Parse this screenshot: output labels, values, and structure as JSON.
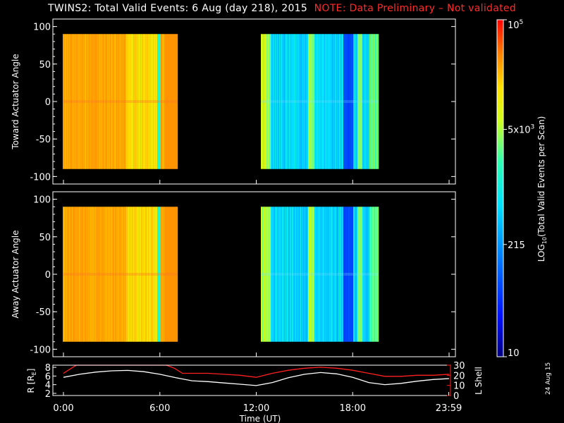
{
  "header": {
    "title_main": "TWINS2: Total Valid Events:  6 Aug (day 218), 2015",
    "title_note": "NOTE: Data Preliminary – Not validated",
    "stamp": "24 Aug 15"
  },
  "colors": {
    "background": "#000000",
    "axes": "#ffffff",
    "note": "#ff2a2a",
    "r_line": "#ffffff",
    "l_shell_line": "#ff2020"
  },
  "chart_data": [
    {
      "type": "heatmap",
      "name": "toward",
      "ylabel": "Toward Actuator Angle",
      "ylim": [
        -110,
        110
      ],
      "yticks": [
        100,
        50,
        0,
        -50,
        -100
      ],
      "xlim": [
        0,
        24
      ],
      "data_blocks": [
        {
          "start_hour": 0.0,
          "end_hour": 7.4,
          "angle_range": [
            -90,
            90
          ],
          "level": "high (~3x10^4 events/scan)"
        },
        {
          "start_hour": 12.4,
          "end_hour": 20.0,
          "angle_range": [
            -90,
            90
          ],
          "level": "medium (~1-5x10^3 events/scan)"
        }
      ]
    },
    {
      "type": "heatmap",
      "name": "away",
      "ylabel": "Away Actuator Angle",
      "ylim": [
        -110,
        110
      ],
      "yticks": [
        100,
        50,
        0,
        -50,
        -100
      ],
      "xlim": [
        0,
        24
      ],
      "data_blocks": [
        {
          "start_hour": 0.0,
          "end_hour": 7.4,
          "angle_range": [
            -90,
            90
          ],
          "level": "high (~3x10^4 events/scan)"
        },
        {
          "start_hour": 12.4,
          "end_hour": 20.0,
          "angle_range": [
            -90,
            90
          ],
          "level": "medium (~1-5x10^3 events/scan)"
        }
      ]
    },
    {
      "type": "line",
      "name": "orbit",
      "xlabel": "Time (UT)",
      "xticks": [
        "0:00",
        "6:00",
        "12:00",
        "18:00",
        "23:59"
      ],
      "xtick_hours": [
        0,
        6,
        12,
        18,
        23.98
      ],
      "ylabel_left": "R [R",
      "ylabel_left_sub": "E",
      "ylabel_left_end": "]",
      "ylabel_right": "L Shell",
      "ylim_left": [
        1.5,
        8.5
      ],
      "yticks_left": [
        "8",
        "6",
        "4",
        "2"
      ],
      "ylim_right": [
        0,
        30
      ],
      "yticks_right": [
        "30",
        "20",
        "10",
        "0"
      ],
      "series": [
        {
          "name": "R",
          "axis": "left",
          "x": [
            0,
            1,
            2,
            3,
            4,
            5,
            6,
            7,
            8,
            9,
            10,
            11,
            12,
            13,
            14,
            15,
            16,
            17,
            18,
            19,
            20,
            21,
            22,
            23,
            24
          ],
          "y": [
            5.7,
            6.4,
            6.9,
            7.2,
            7.3,
            7.0,
            6.4,
            5.6,
            4.9,
            4.7,
            4.4,
            4.1,
            3.8,
            4.5,
            5.6,
            6.4,
            6.8,
            6.5,
            5.7,
            4.5,
            4.0,
            4.3,
            4.8,
            5.2,
            5.4
          ]
        },
        {
          "name": "L Shell",
          "axis": "right",
          "x": [
            0,
            0.4,
            0.8,
            6.4,
            6.9,
            7.4,
            8,
            9,
            10,
            11,
            12,
            13,
            14,
            15,
            16,
            17,
            18,
            19,
            20,
            21,
            22,
            23,
            24
          ],
          "y": [
            22,
            26,
            30,
            30,
            27,
            22,
            22,
            22,
            21,
            20,
            18,
            22,
            25,
            27,
            28,
            27,
            25,
            22,
            19,
            19,
            20,
            20,
            21
          ]
        }
      ]
    },
    {
      "type": "colorbar",
      "name": "colorbar",
      "label": "LOG",
      "label_sub": "10",
      "label_rest": "(Total Valid Events per Scan)",
      "scale": "log",
      "range": [
        10,
        100000
      ],
      "ticks": [
        {
          "value": 100000,
          "base": "10",
          "exp": "5",
          "mantissa": ""
        },
        {
          "value": 5000,
          "base": "10",
          "exp": "3",
          "mantissa": "5x"
        },
        {
          "value": 215,
          "base": "",
          "exp": "",
          "mantissa": "215"
        },
        {
          "value": 10,
          "base": "",
          "exp": "",
          "mantissa": "10"
        }
      ]
    }
  ]
}
